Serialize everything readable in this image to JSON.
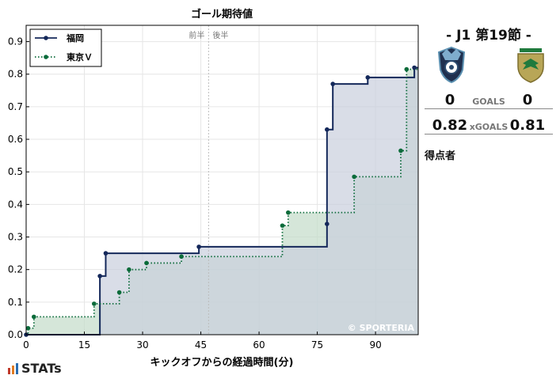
{
  "chart_data": {
    "type": "line",
    "step": true,
    "title": "ゴール期待値",
    "xlabel": "キックオフからの経過時間(分)",
    "ylabel": "",
    "xlim": [
      0,
      101
    ],
    "ylim": [
      0,
      0.95
    ],
    "xticks": [
      0,
      15,
      30,
      45,
      60,
      75,
      90
    ],
    "yticks": [
      0.0,
      0.1,
      0.2,
      0.3,
      0.4,
      0.5,
      0.6,
      0.7,
      0.8,
      0.9
    ],
    "ytick_labels": [
      "0.0",
      "0.1",
      "0.2",
      "0.3",
      "0.4",
      "0.5",
      "0.6",
      "0.7",
      "0.8",
      "0.9"
    ],
    "grid": true,
    "legend_position": "top-left",
    "halftime_minute": 47,
    "halftime_labels": [
      "前半",
      "後半"
    ],
    "watermark": "© SPORTERIA",
    "series": [
      {
        "name": "福岡",
        "color": "#14285a",
        "fill": "#c9cfdd",
        "style": "solid",
        "points": [
          [
            0,
            0.0
          ],
          [
            19,
            0.18
          ],
          [
            20.5,
            0.25
          ],
          [
            44.5,
            0.27
          ],
          [
            77.5,
            0.34
          ],
          [
            77.5,
            0.63
          ],
          [
            79,
            0.77
          ],
          [
            88,
            0.79
          ],
          [
            100,
            0.82
          ]
        ]
      },
      {
        "name": "東京Ｖ",
        "color": "#0b6b3a",
        "fill": "#c3dcc9",
        "style": "dotted",
        "points": [
          [
            0.5,
            0.02
          ],
          [
            2,
            0.055
          ],
          [
            17.5,
            0.095
          ],
          [
            24,
            0.13
          ],
          [
            26.5,
            0.2
          ],
          [
            31,
            0.22
          ],
          [
            40,
            0.24
          ],
          [
            66,
            0.335
          ],
          [
            67.5,
            0.375
          ],
          [
            84.5,
            0.485
          ],
          [
            96.5,
            0.565
          ],
          [
            98,
            0.815
          ]
        ]
      }
    ]
  },
  "match": {
    "title": "- J1 第19節 -",
    "home_crest": "avispa-fukuoka-crest",
    "away_crest": "tokyo-verdy-crest",
    "goals_label": "GOALS",
    "home_goals": "0",
    "away_goals": "0",
    "xg_label": "xGOALS",
    "home_xg": "0.82",
    "away_xg": "0.81",
    "scorers_label": "得点者"
  },
  "brand": {
    "name": "STATs"
  }
}
